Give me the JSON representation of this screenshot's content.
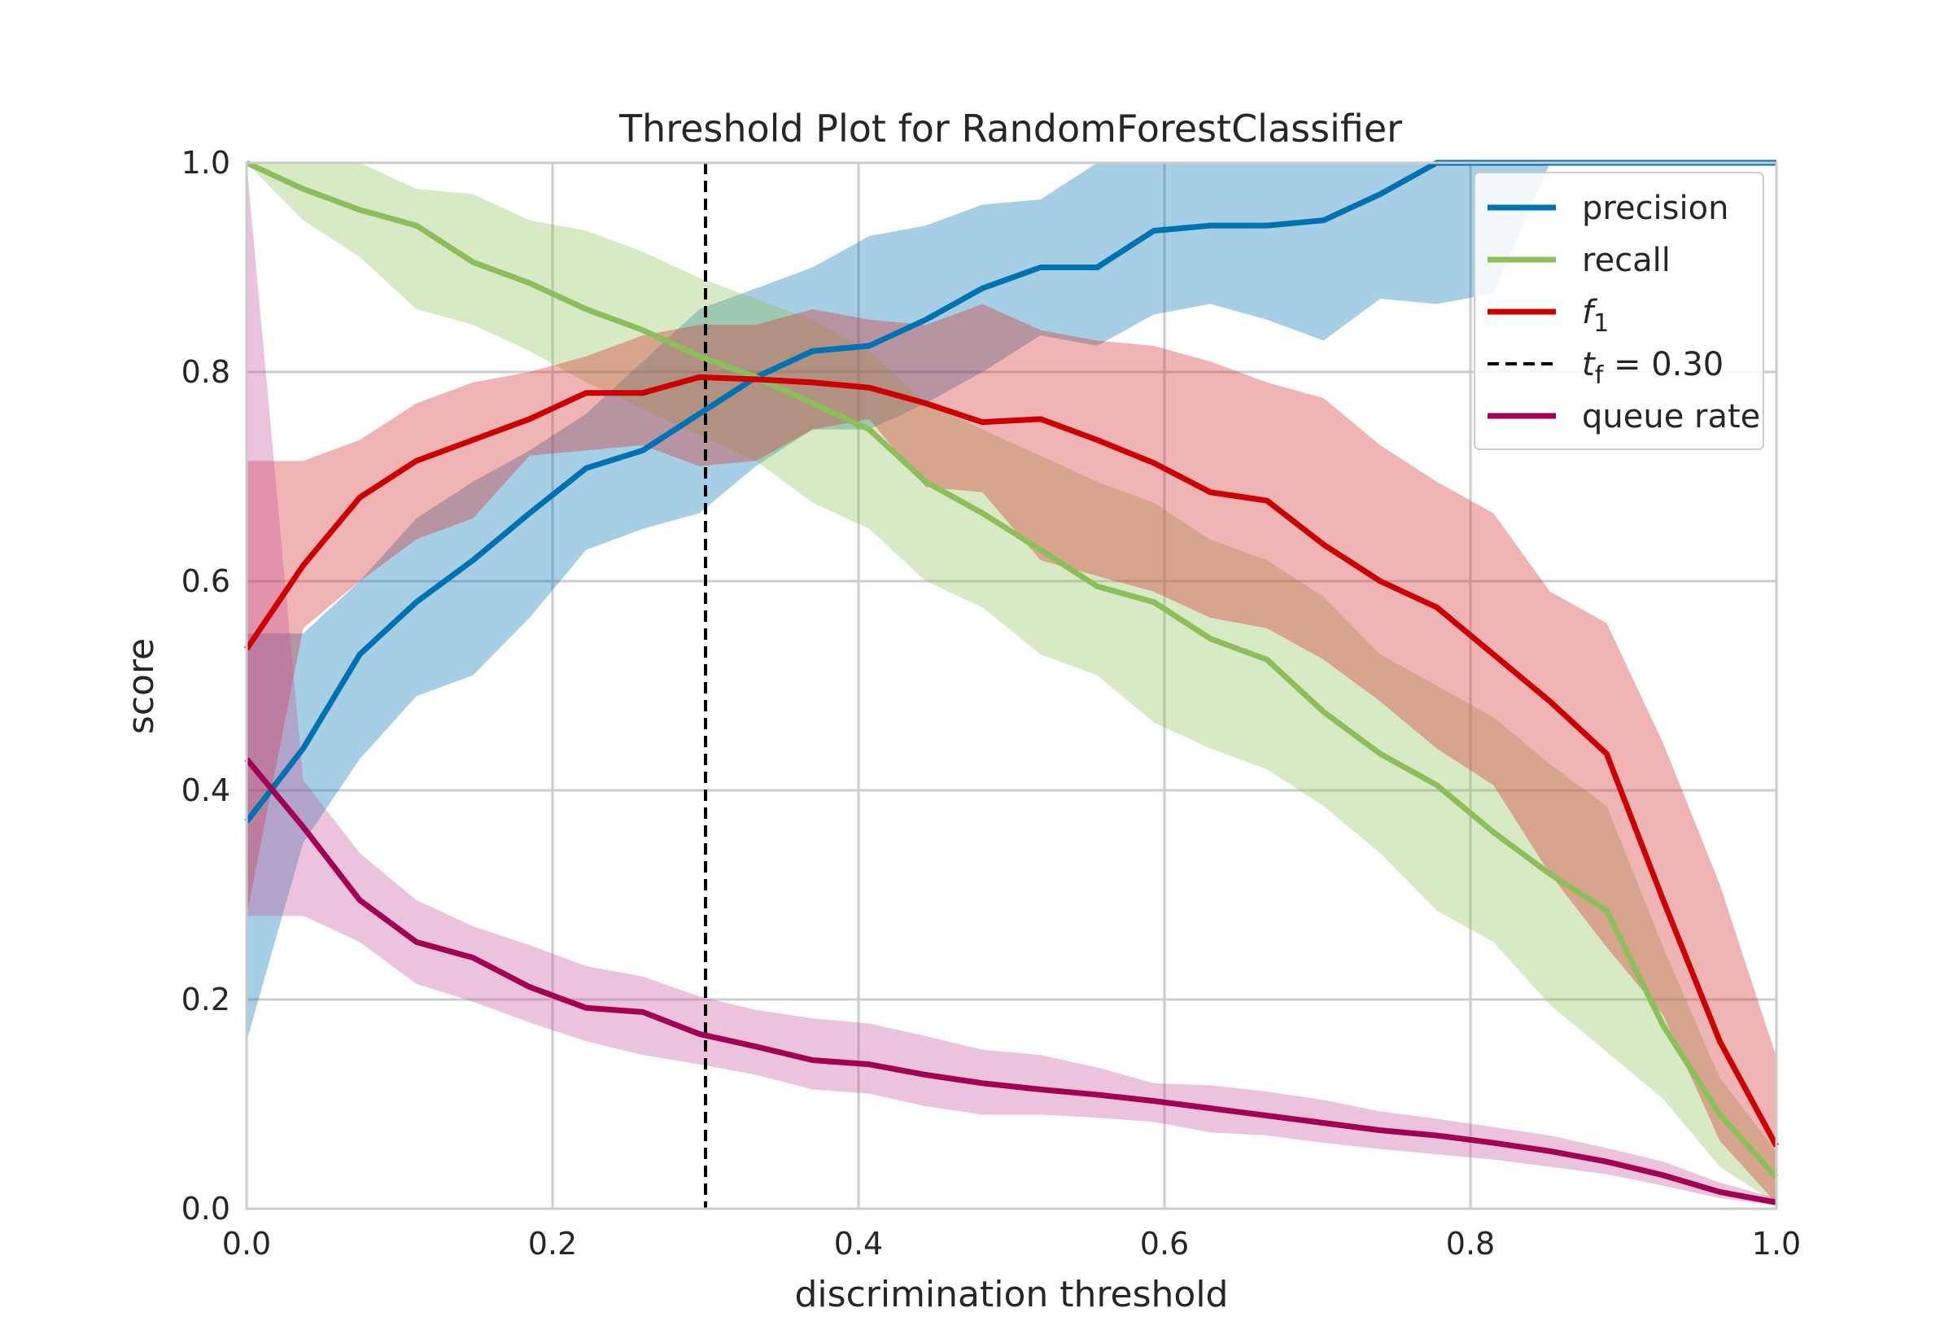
{
  "chart_data": {
    "type": "line",
    "title": "Threshold Plot for RandomForestClassifier",
    "xlabel": "discrimination threshold",
    "ylabel": "score",
    "xlim": [
      0.0,
      1.0
    ],
    "ylim": [
      0.0,
      1.0
    ],
    "xticks": [
      "0.0",
      "0.2",
      "0.4",
      "0.6",
      "0.8",
      "1.0"
    ],
    "yticks": [
      "0.0",
      "0.2",
      "0.4",
      "0.6",
      "0.8",
      "1.0"
    ],
    "grid": true,
    "legend_position": "top-right",
    "x": [
      0.0,
      0.037,
      0.074,
      0.111,
      0.148,
      0.185,
      0.222,
      0.259,
      0.296,
      0.333,
      0.37,
      0.407,
      0.444,
      0.481,
      0.519,
      0.556,
      0.593,
      0.63,
      0.667,
      0.704,
      0.741,
      0.778,
      0.815,
      0.852,
      0.889,
      0.926,
      0.963,
      1.0
    ],
    "series": [
      {
        "name": "precision",
        "color": "#0072b2",
        "band_color": "#0072b2",
        "values": [
          0.37,
          0.44,
          0.53,
          0.58,
          0.62,
          0.665,
          0.708,
          0.725,
          0.76,
          0.795,
          0.82,
          0.825,
          0.85,
          0.88,
          0.9,
          0.9,
          0.935,
          0.94,
          0.94,
          0.945,
          0.97,
          1.0,
          1.0,
          1.0,
          1.0,
          1.0,
          1.0,
          1.0
        ],
        "upper": [
          0.55,
          0.55,
          0.6,
          0.66,
          0.695,
          0.725,
          0.76,
          0.81,
          0.86,
          0.88,
          0.9,
          0.93,
          0.94,
          0.96,
          0.965,
          1.0,
          1.0,
          1.0,
          1.0,
          1.0,
          1.0,
          1.0,
          1.0,
          1.0,
          1.0,
          1.0,
          1.0,
          1.0
        ],
        "lower": [
          0.16,
          0.35,
          0.43,
          0.49,
          0.51,
          0.565,
          0.63,
          0.65,
          0.665,
          0.71,
          0.745,
          0.745,
          0.77,
          0.8,
          0.835,
          0.825,
          0.855,
          0.865,
          0.85,
          0.83,
          0.87,
          0.865,
          0.875,
          1.0,
          1.0,
          1.0,
          1.0,
          1.0
        ]
      },
      {
        "name": "recall",
        "color": "#8cbf5a",
        "band_color": "#8cbf5a",
        "values": [
          1.0,
          0.975,
          0.955,
          0.94,
          0.905,
          0.885,
          0.86,
          0.84,
          0.815,
          0.795,
          0.77,
          0.745,
          0.695,
          0.665,
          0.63,
          0.595,
          0.58,
          0.545,
          0.525,
          0.475,
          0.435,
          0.405,
          0.36,
          0.32,
          0.285,
          0.175,
          0.09,
          0.03
        ],
        "upper": [
          1.0,
          1.0,
          1.0,
          0.975,
          0.97,
          0.945,
          0.935,
          0.915,
          0.89,
          0.87,
          0.85,
          0.82,
          0.77,
          0.745,
          0.72,
          0.695,
          0.675,
          0.64,
          0.62,
          0.585,
          0.53,
          0.5,
          0.47,
          0.425,
          0.385,
          0.25,
          0.125,
          0.055
        ],
        "lower": [
          1.0,
          0.945,
          0.91,
          0.86,
          0.845,
          0.82,
          0.79,
          0.765,
          0.74,
          0.715,
          0.675,
          0.65,
          0.6,
          0.575,
          0.53,
          0.51,
          0.465,
          0.44,
          0.42,
          0.385,
          0.34,
          0.285,
          0.255,
          0.195,
          0.15,
          0.105,
          0.04,
          0.005
        ]
      },
      {
        "name": "f1",
        "color": "#cc0000",
        "band_color": "#d62728",
        "values": [
          0.535,
          0.615,
          0.68,
          0.715,
          0.735,
          0.755,
          0.78,
          0.78,
          0.795,
          0.793,
          0.79,
          0.785,
          0.77,
          0.752,
          0.755,
          0.735,
          0.713,
          0.685,
          0.677,
          0.635,
          0.6,
          0.575,
          0.53,
          0.485,
          0.435,
          0.295,
          0.16,
          0.06
        ],
        "upper": [
          0.715,
          0.715,
          0.735,
          0.77,
          0.79,
          0.8,
          0.815,
          0.835,
          0.845,
          0.845,
          0.86,
          0.85,
          0.845,
          0.865,
          0.84,
          0.83,
          0.825,
          0.81,
          0.79,
          0.775,
          0.73,
          0.695,
          0.665,
          0.59,
          0.56,
          0.445,
          0.31,
          0.145
        ],
        "lower": [
          0.28,
          0.555,
          0.6,
          0.64,
          0.66,
          0.72,
          0.725,
          0.73,
          0.71,
          0.715,
          0.745,
          0.755,
          0.69,
          0.685,
          0.62,
          0.605,
          0.59,
          0.565,
          0.555,
          0.525,
          0.485,
          0.44,
          0.405,
          0.32,
          0.25,
          0.185,
          0.065,
          0.005
        ]
      },
      {
        "name": "queue rate",
        "color": "#a10054",
        "band_color": "#c9549a",
        "values": [
          0.43,
          0.365,
          0.295,
          0.255,
          0.24,
          0.212,
          0.192,
          0.188,
          0.167,
          0.155,
          0.142,
          0.138,
          0.128,
          0.12,
          0.114,
          0.109,
          0.103,
          0.096,
          0.089,
          0.082,
          0.075,
          0.07,
          0.063,
          0.055,
          0.045,
          0.032,
          0.016,
          0.006
        ],
        "upper": [
          1.0,
          0.41,
          0.34,
          0.295,
          0.27,
          0.252,
          0.232,
          0.222,
          0.203,
          0.19,
          0.182,
          0.177,
          0.165,
          0.152,
          0.147,
          0.135,
          0.12,
          0.118,
          0.112,
          0.104,
          0.093,
          0.086,
          0.078,
          0.07,
          0.058,
          0.045,
          0.025,
          0.01
        ],
        "lower": [
          0.28,
          0.28,
          0.255,
          0.215,
          0.198,
          0.178,
          0.16,
          0.147,
          0.138,
          0.128,
          0.114,
          0.11,
          0.098,
          0.09,
          0.09,
          0.087,
          0.083,
          0.073,
          0.07,
          0.063,
          0.057,
          0.052,
          0.047,
          0.04,
          0.033,
          0.022,
          0.01,
          0.003
        ]
      }
    ],
    "threshold": {
      "x": 0.3,
      "color": "#000000"
    },
    "legend": [
      {
        "key": "precision",
        "text": "precision",
        "color": "#0072b2",
        "style": "solid"
      },
      {
        "key": "recall",
        "text": "recall",
        "color": "#8cbf5a",
        "style": "solid"
      },
      {
        "key": "f1",
        "text": "f",
        "sub": "1",
        "color": "#cc0000",
        "style": "solid"
      },
      {
        "key": "threshold",
        "text": "t",
        "sub": "f",
        "suffix": " = 0.30",
        "color": "#000000",
        "style": "dashed"
      },
      {
        "key": "queue-rate",
        "text": "queue rate",
        "color": "#a10054",
        "style": "solid"
      }
    ]
  }
}
